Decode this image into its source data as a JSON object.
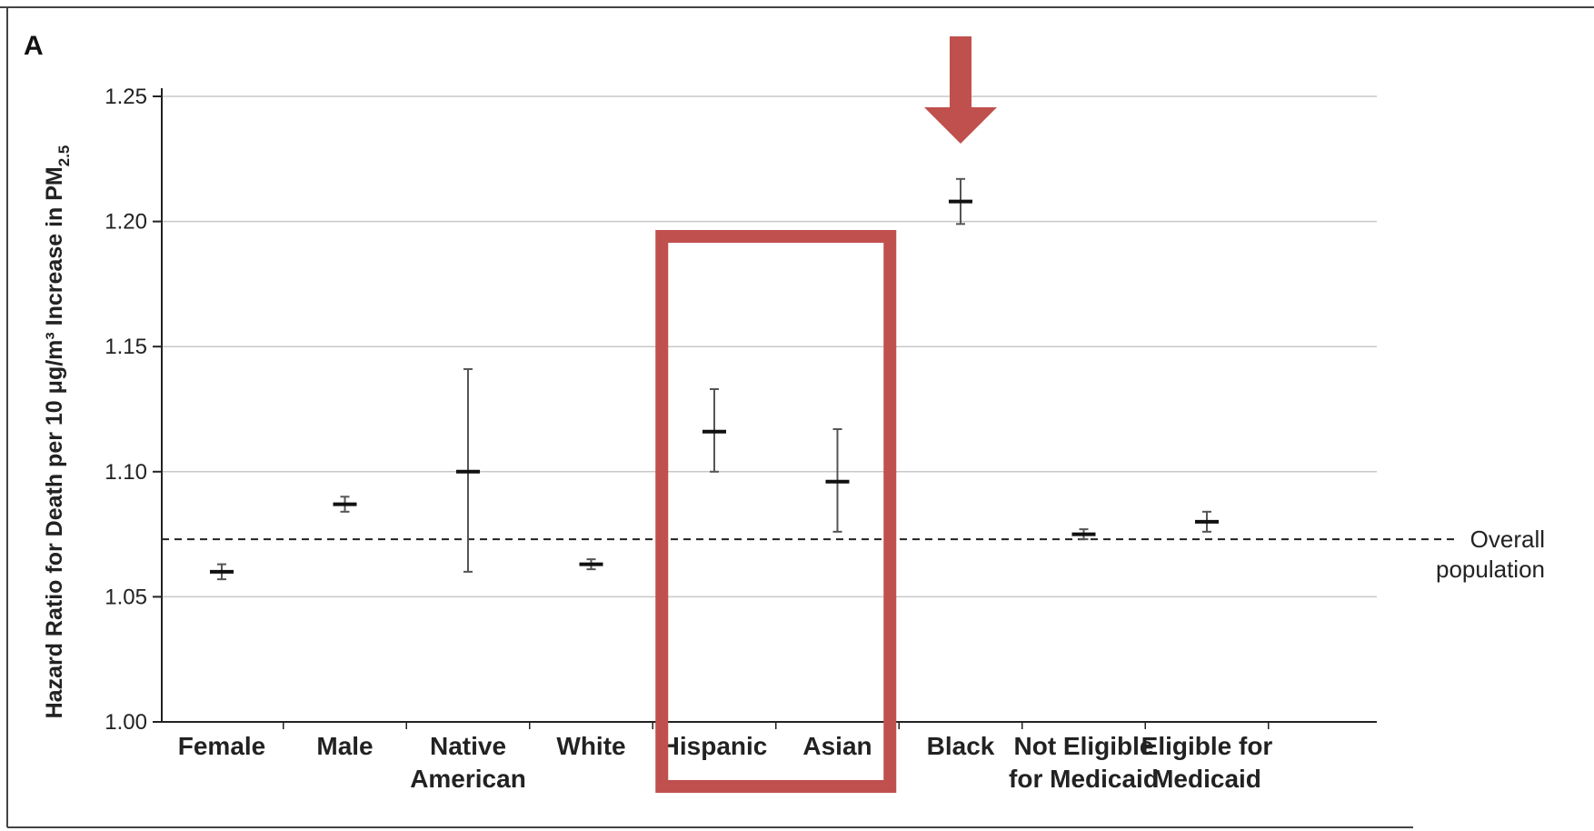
{
  "chart_data": {
    "type": "errorbar",
    "panel_label": "A",
    "ylabel_main": "Hazard Ratio for Death per 10 μg/m³ Increase in PM",
    "ylabel_sub": "2.5",
    "ylim": [
      1.0,
      1.25
    ],
    "yticks": [
      "1.00",
      "1.05",
      "1.10",
      "1.15",
      "1.20",
      "1.25"
    ],
    "grid": true,
    "categories": [
      {
        "lines": [
          "Female"
        ],
        "est": 1.06,
        "lo": 1.057,
        "hi": 1.063
      },
      {
        "lines": [
          "Male"
        ],
        "est": 1.087,
        "lo": 1.084,
        "hi": 1.09
      },
      {
        "lines": [
          "Native",
          "American"
        ],
        "est": 1.1,
        "lo": 1.06,
        "hi": 1.141
      },
      {
        "lines": [
          "White"
        ],
        "est": 1.063,
        "lo": 1.061,
        "hi": 1.065
      },
      {
        "lines": [
          "Hispanic"
        ],
        "est": 1.116,
        "lo": 1.1,
        "hi": 1.133
      },
      {
        "lines": [
          "Asian"
        ],
        "est": 1.096,
        "lo": 1.076,
        "hi": 1.117
      },
      {
        "lines": [
          "Black"
        ],
        "est": 1.208,
        "lo": 1.199,
        "hi": 1.217
      },
      {
        "lines": [
          "Not Eligible",
          "for Medicaid"
        ],
        "est": 1.075,
        "lo": 1.073,
        "hi": 1.077
      },
      {
        "lines": [
          "Eligible for",
          "Medicaid"
        ],
        "est": 1.08,
        "lo": 1.076,
        "hi": 1.084
      }
    ],
    "reference_line": {
      "value": 1.073,
      "label_lines": [
        "Overall",
        "population"
      ]
    },
    "annotations": {
      "highlight_box_categories": [
        "Hispanic",
        "Asian"
      ],
      "arrow_category": "Black",
      "color": "#c0504d"
    }
  }
}
